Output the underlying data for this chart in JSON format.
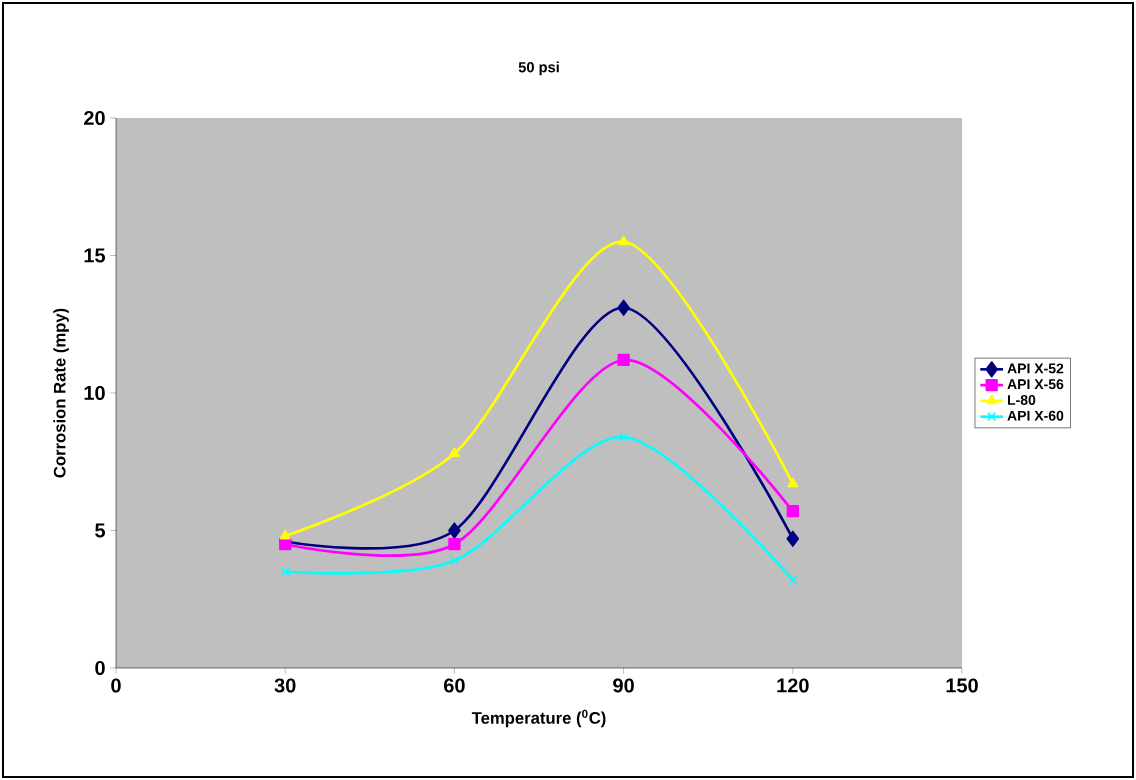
{
  "chart_data": {
    "type": "line",
    "title": "50 psi",
    "xlabel": "Temperature ($^{0}$C)",
    "ylabel": "Corrosion Rate (mpy)",
    "x": [
      30,
      60,
      90,
      120
    ],
    "series": [
      {
        "name": "API X-52",
        "color": "#000080",
        "marker": "diamond",
        "values": [
          4.6,
          5.0,
          13.1,
          4.7
        ]
      },
      {
        "name": "API X-56",
        "color": "#ff00ff",
        "marker": "square",
        "values": [
          4.5,
          4.5,
          11.2,
          5.7
        ]
      },
      {
        "name": "L-80",
        "color": "#ffff00",
        "marker": "triangle",
        "values": [
          4.8,
          7.8,
          15.5,
          6.7
        ]
      },
      {
        "name": "API X-60",
        "color": "#00ffff",
        "marker": "cross",
        "values": [
          3.5,
          3.9,
          8.4,
          3.2
        ]
      }
    ],
    "xlim": [
      0,
      150
    ],
    "xticks": [
      0,
      30,
      60,
      90,
      120,
      150
    ],
    "ylim": [
      0,
      20
    ],
    "yticks": [
      0,
      5,
      10,
      15,
      20
    ],
    "grid": false,
    "legend": "right",
    "line_style": "solid"
  }
}
